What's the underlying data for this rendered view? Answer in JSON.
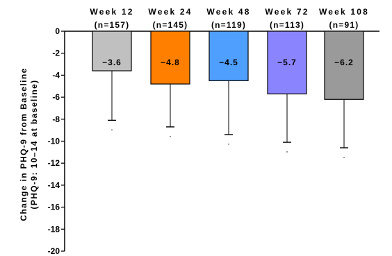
{
  "chart_data": {
    "type": "bar",
    "title": "",
    "ylabel": "Change in PHQ-9 from Baseline",
    "ylabel_sub": "(PHQ-9: 10–14 at baseline)",
    "ylim": [
      -20,
      0
    ],
    "yticks": [
      0,
      -2,
      -4,
      -6,
      -8,
      -10,
      -12,
      -14,
      -16,
      -18,
      -20
    ],
    "ytick_labels": [
      "0",
      "-2",
      "-4",
      "-6",
      "-8",
      "-10",
      "-12",
      "-14",
      "-16",
      "-18",
      "-20"
    ],
    "categories": [
      "Week 12",
      "Week 24",
      "Week 48",
      "Week 72",
      "Week 108"
    ],
    "n_labels": [
      "(n=157)",
      "(n=145)",
      "(n=119)",
      "(n=113)",
      "(n=91)"
    ],
    "values": [
      -3.6,
      -4.8,
      -4.5,
      -5.7,
      -6.2
    ],
    "value_labels": [
      "−3.6",
      "−4.8",
      "−4.5",
      "−5.7",
      "−6.2"
    ],
    "error_low": [
      -8.1,
      -8.7,
      -9.4,
      -10.1,
      -10.6
    ],
    "colors": [
      "#c0c0c0",
      "#ff7f00",
      "#4f9fff",
      "#8b84ff",
      "#9a9a9a"
    ],
    "grid": false
  }
}
